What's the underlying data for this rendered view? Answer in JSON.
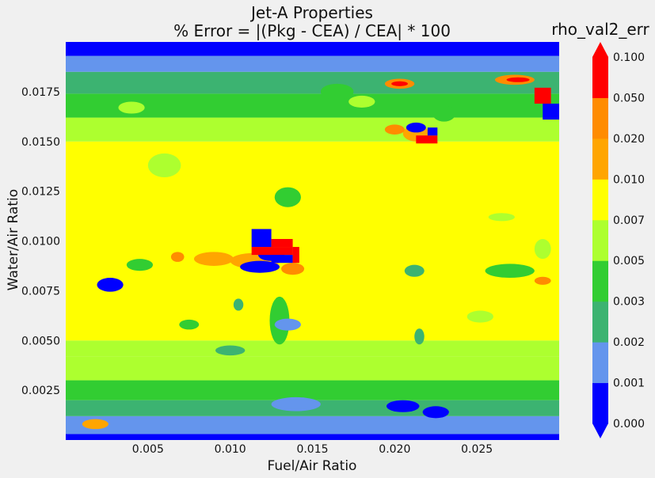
{
  "chart_data": {
    "type": "contourf",
    "title_line1": "Jet-A Properties",
    "title_line2": "% Error = |(Pkg - CEA) / CEA| * 100",
    "xlabel": "Fuel/Air Ratio",
    "ylabel": "Water/Air Ratio",
    "xlim": [
      0.0,
      0.03
    ],
    "ylim": [
      0.0,
      0.02
    ],
    "x_ticks": [
      0.005,
      0.01,
      0.015,
      0.02,
      0.025
    ],
    "x_tick_labels": [
      "0.005",
      "0.010",
      "0.015",
      "0.020",
      "0.025"
    ],
    "y_ticks": [
      0.0025,
      0.005,
      0.0075,
      0.01,
      0.0125,
      0.015,
      0.0175
    ],
    "y_tick_labels": [
      "0.0025",
      "0.0050",
      "0.0075",
      "0.0100",
      "0.0125",
      "0.0150",
      "0.0175"
    ],
    "colorbar": {
      "title": "rho_val2_err",
      "levels": [
        0.0,
        0.001,
        0.002,
        0.003,
        0.005,
        0.007,
        0.01,
        0.02,
        0.05,
        0.1
      ],
      "level_labels": [
        "0.000",
        "0.001",
        "0.002",
        "0.003",
        "0.005",
        "0.007",
        "0.010",
        "0.020",
        "0.050",
        "0.100"
      ],
      "colors": [
        "#0000ff",
        "#6495ed",
        "#3cb371",
        "#32cd32",
        "#adff2f",
        "#ffff00",
        "#ffa500",
        "#ff8c00",
        "#ff0000"
      ],
      "extend": "both",
      "under_color": "#0000ff",
      "over_color": "#ff0000"
    },
    "bands": [
      {
        "y0": 0.0,
        "y1": 0.0003,
        "level": 0
      },
      {
        "y0": 0.0003,
        "y1": 0.0012,
        "level": 1
      },
      {
        "y0": 0.0012,
        "y1": 0.002,
        "level": 2
      },
      {
        "y0": 0.002,
        "y1": 0.003,
        "level": 3
      },
      {
        "y0": 0.003,
        "y1": 0.0042,
        "level": 4
      },
      {
        "y0": 0.0042,
        "y1": 0.005,
        "level": 4
      },
      {
        "y0": 0.005,
        "y1": 0.015,
        "level": 5
      },
      {
        "y0": 0.015,
        "y1": 0.0162,
        "level": 4
      },
      {
        "y0": 0.0162,
        "y1": 0.0174,
        "level": 3
      },
      {
        "y0": 0.0174,
        "y1": 0.0185,
        "level": 2
      },
      {
        "y0": 0.0185,
        "y1": 0.0193,
        "level": 1
      },
      {
        "y0": 0.0193,
        "y1": 0.02,
        "level": 0
      }
    ],
    "blobs": [
      {
        "x": 0.0115,
        "y": 0.009,
        "rx": 0.0015,
        "ry": 0.0004,
        "level": 6
      },
      {
        "x": 0.009,
        "y": 0.0091,
        "rx": 0.0012,
        "ry": 0.00035,
        "level": 6
      },
      {
        "x": 0.0068,
        "y": 0.0092,
        "rx": 0.0004,
        "ry": 0.00025,
        "level": 7
      },
      {
        "x": 0.0118,
        "y": 0.0087,
        "rx": 0.0012,
        "ry": 0.0003,
        "level": 0
      },
      {
        "x": 0.0125,
        "y": 0.0093,
        "rx": 0.0008,
        "ry": 0.0003,
        "level": 0
      },
      {
        "x": 0.0138,
        "y": 0.0086,
        "rx": 0.0007,
        "ry": 0.0003,
        "level": 7
      },
      {
        "x": 0.0027,
        "y": 0.0078,
        "rx": 0.0008,
        "ry": 0.00035,
        "level": 0
      },
      {
        "x": 0.027,
        "y": 0.0085,
        "rx": 0.0015,
        "ry": 0.00035,
        "level": 3
      },
      {
        "x": 0.029,
        "y": 0.008,
        "rx": 0.0005,
        "ry": 0.0002,
        "level": 7
      },
      {
        "x": 0.029,
        "y": 0.0096,
        "rx": 0.0005,
        "ry": 0.0005,
        "level": 4
      },
      {
        "x": 0.0203,
        "y": 0.0179,
        "rx": 0.0009,
        "ry": 0.00025,
        "level": 7
      },
      {
        "x": 0.0203,
        "y": 0.0179,
        "rx": 0.0005,
        "ry": 0.00012,
        "level": 8
      },
      {
        "x": 0.0273,
        "y": 0.0181,
        "rx": 0.0012,
        "ry": 0.00025,
        "level": 7
      },
      {
        "x": 0.0275,
        "y": 0.0181,
        "rx": 0.0007,
        "ry": 0.00012,
        "level": 8
      },
      {
        "x": 0.0213,
        "y": 0.0154,
        "rx": 0.0008,
        "ry": 0.0004,
        "level": 6
      },
      {
        "x": 0.0213,
        "y": 0.0157,
        "rx": 0.0006,
        "ry": 0.00025,
        "level": 0
      },
      {
        "x": 0.02,
        "y": 0.0156,
        "rx": 0.0006,
        "ry": 0.00025,
        "level": 7
      },
      {
        "x": 0.01,
        "y": 0.0045,
        "rx": 0.0009,
        "ry": 0.00025,
        "level": 2
      },
      {
        "x": 0.013,
        "y": 0.006,
        "rx": 0.0006,
        "ry": 0.0012,
        "level": 3
      },
      {
        "x": 0.0135,
        "y": 0.0058,
        "rx": 0.0008,
        "ry": 0.0003,
        "level": 1
      },
      {
        "x": 0.014,
        "y": 0.0018,
        "rx": 0.0015,
        "ry": 0.00035,
        "level": 1
      },
      {
        "x": 0.0205,
        "y": 0.0017,
        "rx": 0.001,
        "ry": 0.0003,
        "level": 0
      },
      {
        "x": 0.0225,
        "y": 0.0014,
        "rx": 0.0008,
        "ry": 0.0003,
        "level": 0
      },
      {
        "x": 0.0018,
        "y": 0.0008,
        "rx": 0.0008,
        "ry": 0.00025,
        "level": 6
      },
      {
        "x": 0.0135,
        "y": 0.0122,
        "rx": 0.0008,
        "ry": 0.0005,
        "level": 3
      },
      {
        "x": 0.006,
        "y": 0.0138,
        "rx": 0.001,
        "ry": 0.0006,
        "level": 4
      },
      {
        "x": 0.023,
        "y": 0.0164,
        "rx": 0.0007,
        "ry": 0.0004,
        "level": 3
      },
      {
        "x": 0.0165,
        "y": 0.0175,
        "rx": 0.001,
        "ry": 0.0004,
        "level": 3
      },
      {
        "x": 0.0045,
        "y": 0.0088,
        "rx": 0.0008,
        "ry": 0.0003,
        "level": 3
      },
      {
        "x": 0.0265,
        "y": 0.0112,
        "rx": 0.0008,
        "ry": 0.0002,
        "level": 4
      },
      {
        "x": 0.0252,
        "y": 0.0062,
        "rx": 0.0008,
        "ry": 0.0003,
        "level": 4
      },
      {
        "x": 0.0212,
        "y": 0.0085,
        "rx": 0.0006,
        "ry": 0.0003,
        "level": 2
      },
      {
        "x": 0.0215,
        "y": 0.0052,
        "rx": 0.0003,
        "ry": 0.0004,
        "level": 2
      },
      {
        "x": 0.0105,
        "y": 0.0068,
        "rx": 0.0003,
        "ry": 0.0003,
        "level": 2
      },
      {
        "x": 0.0075,
        "y": 0.0058,
        "rx": 0.0006,
        "ry": 0.00025,
        "level": 3
      },
      {
        "x": 0.018,
        "y": 0.017,
        "rx": 0.0008,
        "ry": 0.0003,
        "level": 4
      },
      {
        "x": 0.004,
        "y": 0.0167,
        "rx": 0.0008,
        "ry": 0.0003,
        "level": 4
      }
    ],
    "cells": [
      {
        "x0": 0.0113,
        "x1": 0.0125,
        "y0": 0.0097,
        "y1": 0.0106,
        "level": 0
      },
      {
        "x0": 0.0113,
        "x1": 0.0138,
        "y0": 0.0093,
        "y1": 0.0097,
        "level": 8
      },
      {
        "x0": 0.0125,
        "x1": 0.0138,
        "y0": 0.0097,
        "y1": 0.0101,
        "level": 8
      },
      {
        "x0": 0.0125,
        "x1": 0.0138,
        "y0": 0.0089,
        "y1": 0.0093,
        "level": 0
      },
      {
        "x0": 0.0138,
        "x1": 0.0142,
        "y0": 0.0089,
        "y1": 0.0097,
        "level": 8
      },
      {
        "x0": 0.0285,
        "x1": 0.0295,
        "y0": 0.0169,
        "y1": 0.0177,
        "level": 8
      },
      {
        "x0": 0.029,
        "x1": 0.03,
        "y0": 0.0161,
        "y1": 0.0169,
        "level": 0
      },
      {
        "x0": 0.0213,
        "x1": 0.0226,
        "y0": 0.0149,
        "y1": 0.0153,
        "level": 8
      },
      {
        "x0": 0.022,
        "x1": 0.0226,
        "y0": 0.0153,
        "y1": 0.0157,
        "level": 0
      }
    ]
  }
}
